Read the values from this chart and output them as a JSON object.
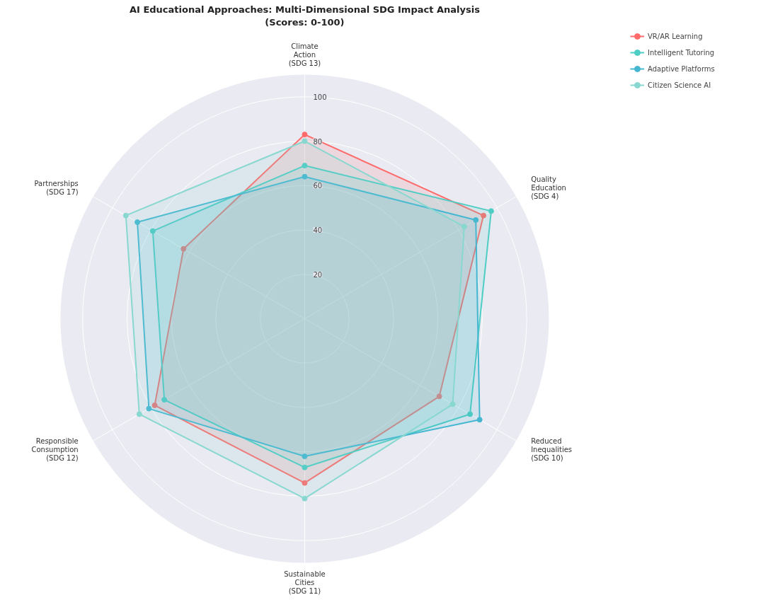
{
  "chart_data": {
    "type": "radar",
    "title": "AI Educational Approaches: Multi-Dimensional SDG Impact Analysis\n(Scores: 0-100)",
    "categories": [
      "Climate\nAction\n(SDG 13)",
      "Quality\nEducation\n(SDG 4)",
      "Reduced\nInequalities\n(SDG 10)",
      "Sustainable\nCities\n(SDG 11)",
      "Responsible\nConsumption\n(SDG 12)",
      "Partnerships\n(SDG 17)"
    ],
    "series": [
      {
        "name": "VR/AR Learning",
        "color": "#ff6b6b",
        "values": [
          83,
          93,
          70,
          74,
          78,
          63
        ]
      },
      {
        "name": "Intelligent Tutoring",
        "color": "#4ecdc4",
        "values": [
          69,
          97,
          86,
          67,
          73,
          79
        ]
      },
      {
        "name": "Adaptive Platforms",
        "color": "#45b7d1",
        "values": [
          64,
          89,
          91,
          62,
          81,
          87
        ]
      },
      {
        "name": "Citizen Science AI",
        "color": "#88d8d0",
        "values": [
          80,
          83,
          77,
          81,
          86,
          93
        ]
      }
    ],
    "ylim": [
      0,
      110
    ],
    "yticks": [
      20,
      40,
      60,
      80,
      100
    ],
    "marker": "circle",
    "grid": true,
    "legend": "top right"
  }
}
